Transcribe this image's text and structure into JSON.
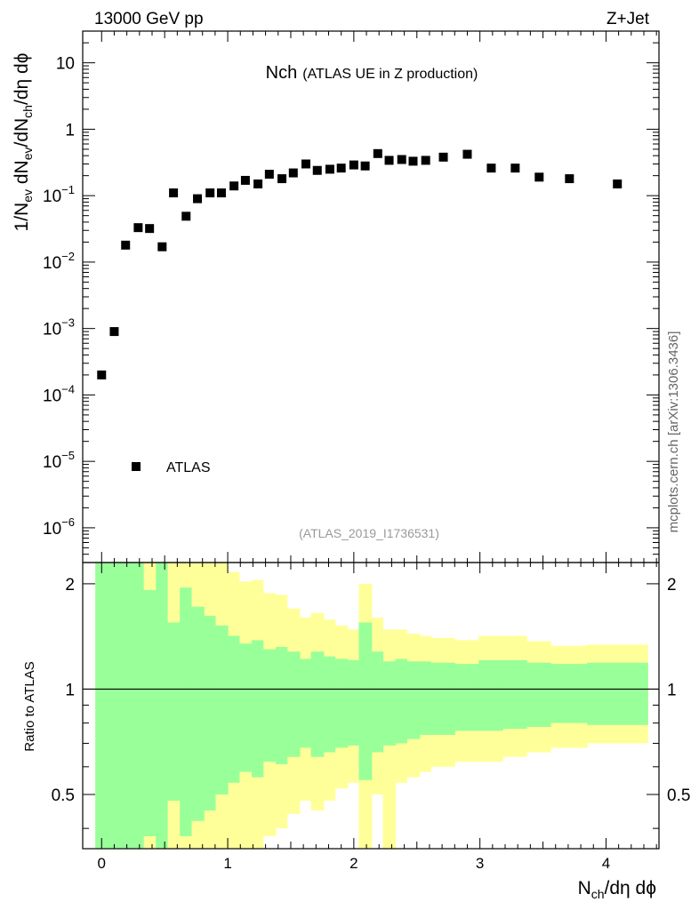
{
  "chart_data": {
    "type": "scatter",
    "header_left": "13000 GeV pp",
    "header_right": "Z+Jet",
    "title_main": "Nch",
    "title_sub": "(ATLAS UE in Z production)",
    "analysis_id": "(ATLAS_2019_I1736531)",
    "side_label": "mcplots.cern.ch [arXiv:1306.3436]",
    "xlabel": "N_ch/dη dϕ",
    "ylabel": "1/N_ev dN_ev/dN_ch/dη dϕ",
    "ratio_ylabel": "Ratio to ATLAS",
    "legend": [
      {
        "name": "ATLAS",
        "marker": "square"
      }
    ],
    "xlim": [
      -0.15,
      4.42
    ],
    "ylim": [
      3e-07,
      30
    ],
    "yscale": "log",
    "ratio_ylim": [
      0.35,
      2.3
    ],
    "x_ticks": [
      0,
      1,
      2,
      3,
      4
    ],
    "x_tick_labels": [
      "0",
      "1",
      "2",
      "3",
      "4"
    ],
    "y_ticks": [
      {
        "value": 10,
        "mantissa": "10",
        "exp": ""
      },
      {
        "value": 1,
        "mantissa": "1",
        "exp": ""
      },
      {
        "value": 0.1,
        "mantissa": "10",
        "exp": "−1"
      },
      {
        "value": 0.01,
        "mantissa": "10",
        "exp": "−2"
      },
      {
        "value": 0.001,
        "mantissa": "10",
        "exp": "−3"
      },
      {
        "value": 0.0001,
        "mantissa": "10",
        "exp": "−4"
      },
      {
        "value": 1e-05,
        "mantissa": "10",
        "exp": "−5"
      },
      {
        "value": 1e-06,
        "mantissa": "10",
        "exp": "−6"
      }
    ],
    "ratio_ticks": [
      0.5,
      1,
      2
    ],
    "ratio_tick_labels": [
      "0.5",
      "1",
      "2"
    ],
    "colors": {
      "inner_band": "#99ff99",
      "outer_band": "#ffff99",
      "marker": "#000000"
    },
    "series": [
      {
        "name": "ATLAS",
        "x": [
          0.0,
          0.1,
          0.19,
          0.29,
          0.38,
          0.48,
          0.57,
          0.67,
          0.76,
          0.86,
          0.95,
          1.05,
          1.14,
          1.24,
          1.33,
          1.43,
          1.52,
          1.62,
          1.71,
          1.81,
          1.9,
          2.0,
          2.09,
          2.19,
          2.28,
          2.38,
          2.47,
          2.57,
          2.71,
          2.9,
          3.09,
          3.28,
          3.47,
          3.71,
          4.09
        ],
        "y": [
          0.0002,
          0.0009,
          0.018,
          0.033,
          0.032,
          0.017,
          0.11,
          0.049,
          0.09,
          0.11,
          0.11,
          0.14,
          0.17,
          0.15,
          0.21,
          0.18,
          0.22,
          0.3,
          0.24,
          0.25,
          0.26,
          0.29,
          0.28,
          0.43,
          0.34,
          0.35,
          0.33,
          0.34,
          0.38,
          0.42,
          0.26,
          0.26,
          0.19,
          0.18,
          0.15
        ]
      }
    ],
    "ratio_bands": {
      "edges": [
        -0.05,
        0.05,
        0.14,
        0.24,
        0.33,
        0.43,
        0.52,
        0.62,
        0.71,
        0.81,
        0.9,
        1.0,
        1.09,
        1.19,
        1.28,
        1.38,
        1.47,
        1.57,
        1.66,
        1.76,
        1.85,
        1.95,
        2.04,
        2.14,
        2.23,
        2.33,
        2.42,
        2.52,
        2.61,
        2.8,
        2.99,
        3.18,
        3.37,
        3.56,
        3.85,
        4.33
      ],
      "inner_up": [
        2.3,
        2.3,
        2.3,
        2.3,
        1.92,
        2.3,
        1.55,
        1.95,
        1.72,
        1.62,
        1.52,
        1.42,
        1.35,
        1.38,
        1.3,
        1.32,
        1.28,
        1.22,
        1.28,
        1.24,
        1.22,
        1.21,
        1.55,
        1.28,
        1.2,
        1.22,
        1.2,
        1.2,
        1.19,
        1.18,
        1.21,
        1.21,
        1.19,
        1.18,
        1.19
      ],
      "inner_lo": [
        0.35,
        0.35,
        0.35,
        0.35,
        0.38,
        0.35,
        0.48,
        0.38,
        0.42,
        0.45,
        0.5,
        0.54,
        0.58,
        0.56,
        0.62,
        0.61,
        0.64,
        0.68,
        0.64,
        0.66,
        0.68,
        0.69,
        0.55,
        0.66,
        0.69,
        0.7,
        0.72,
        0.74,
        0.74,
        0.76,
        0.76,
        0.77,
        0.78,
        0.8,
        0.79
      ],
      "outer_up": [
        2.3,
        2.3,
        2.3,
        2.3,
        2.3,
        2.3,
        2.3,
        2.3,
        2.3,
        2.3,
        2.3,
        2.16,
        2.03,
        2.05,
        1.88,
        1.86,
        1.7,
        1.6,
        1.65,
        1.58,
        1.52,
        1.48,
        2.0,
        1.6,
        1.48,
        1.48,
        1.44,
        1.42,
        1.4,
        1.38,
        1.42,
        1.42,
        1.37,
        1.33,
        1.34
      ],
      "outer_lo": [
        0.35,
        0.35,
        0.35,
        0.35,
        0.35,
        0.35,
        0.35,
        0.35,
        0.35,
        0.35,
        0.35,
        0.35,
        0.35,
        0.35,
        0.38,
        0.4,
        0.44,
        0.48,
        0.45,
        0.48,
        0.52,
        0.54,
        0.35,
        0.5,
        0.35,
        0.54,
        0.56,
        0.58,
        0.6,
        0.62,
        0.62,
        0.64,
        0.66,
        0.68,
        0.7
      ]
    }
  }
}
